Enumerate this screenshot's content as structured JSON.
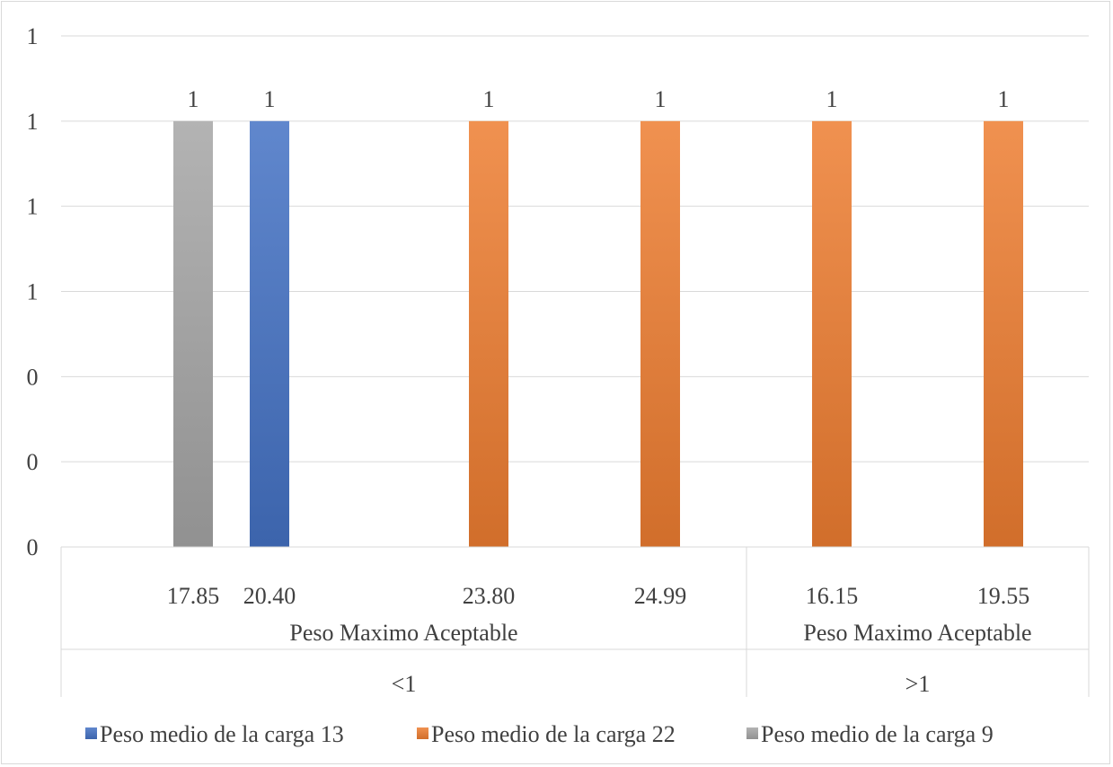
{
  "chart_data": {
    "type": "bar",
    "title": "",
    "xlabel": "",
    "ylabel": "",
    "y_tick_labels": [
      "0",
      "0",
      "0",
      "1",
      "1",
      "1",
      "1"
    ],
    "ylim": [
      0,
      1.2
    ],
    "grid": true,
    "legend_position": "bottom",
    "categories": [
      "17.85",
      "20.40",
      "23.80",
      "24.99",
      "16.15",
      "19.55"
    ],
    "category_groups": [
      {
        "label": "Peso Maximo Aceptable",
        "parent": "<1",
        "categories": [
          "17.85",
          "20.40",
          "23.80",
          "24.99"
        ]
      },
      {
        "label": "Peso Maximo Aceptable",
        "parent": ">1",
        "categories": [
          "16.15",
          "19.55"
        ]
      }
    ],
    "series": [
      {
        "name": "Peso medio de la carga 13",
        "color": "#4472c4",
        "values": [
          null,
          1,
          null,
          null,
          null,
          null
        ]
      },
      {
        "name": "Peso medio de la carga 22",
        "color": "#ed7d31",
        "values": [
          null,
          null,
          1,
          1,
          1,
          1
        ]
      },
      {
        "name": "Peso medio de la carga 9",
        "color": "#a5a5a5",
        "values": [
          1,
          null,
          null,
          null,
          null,
          null
        ]
      }
    ],
    "data_labels": [
      "1",
      "1",
      "1",
      "1",
      "1",
      "1"
    ]
  }
}
